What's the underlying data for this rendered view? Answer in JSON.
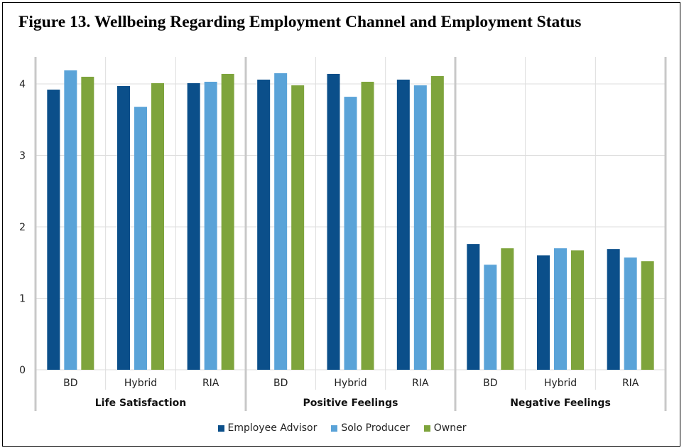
{
  "figure_title": "Figure 13. Wellbeing Regarding Employment Channel and Employment Status",
  "colors": {
    "employee_advisor": "#0b4f8a",
    "solo_producer": "#5aa3d8",
    "owner": "#7ea43c",
    "grid": "#dddddd",
    "separator": "#c8c8c8"
  },
  "chart_data": {
    "type": "bar",
    "title": "Figure 13. Wellbeing Regarding Employment Channel and Employment Status",
    "xlabel": "",
    "ylabel": "",
    "ylim": [
      0,
      4.2
    ],
    "yticks": [
      0,
      1,
      2,
      3,
      4
    ],
    "grid": true,
    "legend_position": "bottom",
    "groups": [
      "Life Satisfaction",
      "Positive Feelings",
      "Negative Feelings"
    ],
    "categories": [
      "BD",
      "Hybrid",
      "RIA"
    ],
    "series": [
      {
        "name": "Employee Advisor",
        "color": "#0b4f8a",
        "values": [
          [
            3.92,
            3.97,
            4.01
          ],
          [
            4.06,
            4.14,
            4.06
          ],
          [
            1.76,
            1.6,
            1.69
          ]
        ]
      },
      {
        "name": "Solo Producer",
        "color": "#5aa3d8",
        "values": [
          [
            4.19,
            3.68,
            4.03
          ],
          [
            4.15,
            3.82,
            3.98
          ],
          [
            1.47,
            1.7,
            1.57
          ]
        ]
      },
      {
        "name": "Owner",
        "color": "#7ea43c",
        "values": [
          [
            4.1,
            4.01,
            4.14
          ],
          [
            3.98,
            4.03,
            4.11
          ],
          [
            1.7,
            1.67,
            1.52
          ]
        ]
      }
    ]
  }
}
